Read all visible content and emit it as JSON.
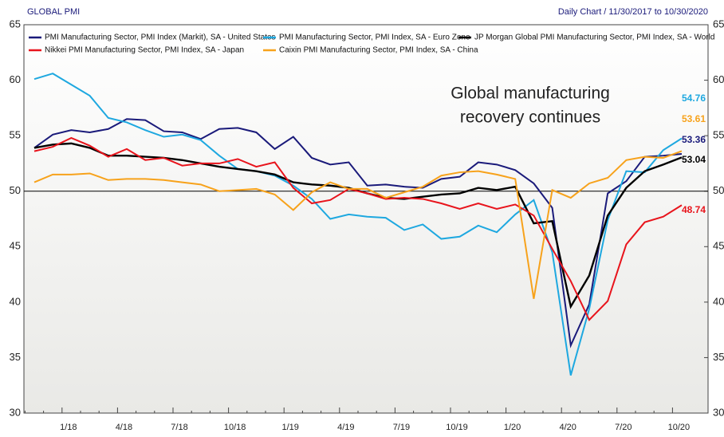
{
  "chart_data": {
    "type": "line",
    "title": "GLOBAL PMI",
    "subtitle": "Daily Chart / 11/30/2017 to 10/30/2020",
    "annotation": [
      "Global manufacturing",
      "recovery continues"
    ],
    "categories": [
      null,
      null,
      "1/18",
      null,
      null,
      "4/18",
      null,
      null,
      "7/18",
      null,
      null,
      "10/18",
      null,
      null,
      "1/19",
      null,
      null,
      "4/19",
      null,
      null,
      "7/19",
      null,
      null,
      "10/19",
      null,
      null,
      "1/20",
      null,
      null,
      "4/20",
      null,
      null,
      "7/20",
      null,
      null,
      "10/20"
    ],
    "series": [
      {
        "name": "PMI Manufacturing Sector, PMI Index (Markit), SA - United States",
        "color": "#1a1a7a",
        "values": [
          53.9,
          55.1,
          55.5,
          55.3,
          55.6,
          56.5,
          56.4,
          55.4,
          55.3,
          54.7,
          55.6,
          55.7,
          55.3,
          53.8,
          54.9,
          53.0,
          52.4,
          52.6,
          50.5,
          50.6,
          50.4,
          50.3,
          51.1,
          51.3,
          52.6,
          52.4,
          51.9,
          50.7,
          48.5,
          36.1,
          39.8,
          49.8,
          50.9,
          53.1,
          53.2,
          53.36
        ]
      },
      {
        "name": "PMI Manufacturing Sector, PMI Index, SA - Euro Zone",
        "color": "#1ea8e0",
        "values": [
          60.1,
          60.6,
          59.6,
          58.6,
          56.6,
          56.2,
          55.5,
          54.9,
          55.1,
          54.6,
          53.2,
          52.0,
          51.8,
          51.4,
          50.5,
          49.3,
          47.5,
          47.9,
          47.7,
          47.6,
          46.5,
          47.0,
          45.7,
          45.9,
          46.9,
          46.3,
          47.9,
          49.2,
          44.5,
          33.4,
          39.4,
          47.4,
          51.8,
          51.7,
          53.7,
          54.76
        ]
      },
      {
        "name": "JP Morgan Global PMI Manufacturing Sector, PMI Index, SA - World",
        "color": "#000000",
        "values": [
          53.9,
          54.2,
          54.3,
          53.9,
          53.2,
          53.2,
          53.1,
          53.0,
          52.8,
          52.5,
          52.2,
          52.0,
          51.8,
          51.5,
          50.8,
          50.6,
          50.5,
          50.3,
          49.8,
          49.4,
          49.3,
          49.5,
          49.7,
          49.8,
          50.3,
          50.1,
          50.4,
          47.1,
          47.3,
          39.6,
          42.4,
          47.8,
          50.3,
          51.8,
          52.4,
          53.04
        ]
      },
      {
        "name": "Nikkei PMI Manufacturing Sector, PMI Index, SA - Japan",
        "color": "#e8141c",
        "values": [
          53.6,
          54.0,
          54.8,
          54.1,
          53.1,
          53.8,
          52.8,
          53.0,
          52.3,
          52.5,
          52.5,
          52.9,
          52.2,
          52.6,
          50.3,
          48.9,
          49.2,
          50.2,
          49.8,
          49.3,
          49.4,
          49.3,
          48.9,
          48.4,
          48.9,
          48.4,
          48.8,
          47.8,
          44.8,
          41.9,
          38.4,
          40.1,
          45.2,
          47.2,
          47.7,
          48.74
        ]
      },
      {
        "name": "Caixin PMI Manufacturing Sector, PMI Index, SA - China",
        "color": "#f7a21b",
        "values": [
          50.8,
          51.5,
          51.5,
          51.6,
          51.0,
          51.1,
          51.1,
          51.0,
          50.8,
          50.6,
          50.0,
          50.1,
          50.2,
          49.7,
          48.3,
          49.9,
          50.8,
          50.2,
          50.2,
          49.4,
          49.9,
          50.4,
          51.4,
          51.7,
          51.8,
          51.5,
          51.1,
          40.3,
          50.1,
          49.4,
          50.7,
          51.2,
          52.8,
          53.1,
          53.0,
          53.61
        ]
      }
    ],
    "reference_line": 50,
    "ylim": [
      30,
      65
    ],
    "yticks": [
      30,
      35,
      40,
      45,
      50,
      55,
      60,
      65
    ]
  }
}
